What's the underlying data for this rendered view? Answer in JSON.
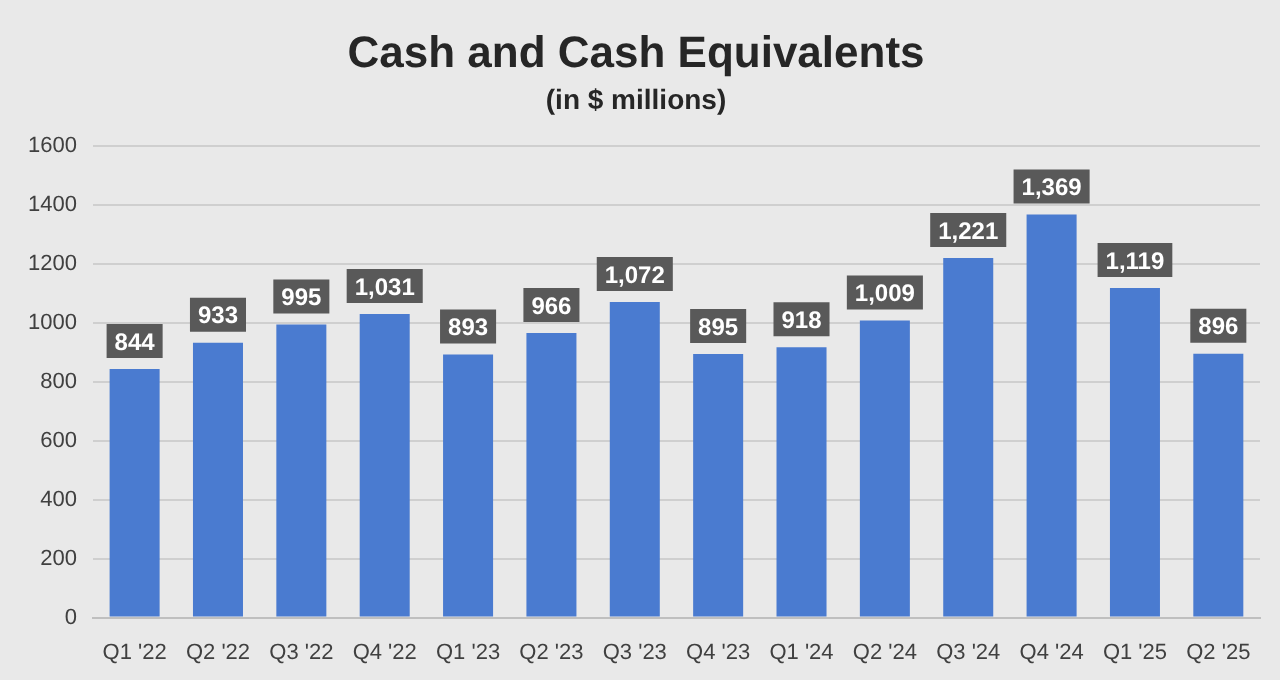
{
  "chart_data": {
    "type": "bar",
    "title": "Cash and Cash Equivalents",
    "subtitle": "(in $ millions)",
    "categories": [
      "Q1 '22",
      "Q2 '22",
      "Q3 '22",
      "Q4 '22",
      "Q1 '23",
      "Q2 '23",
      "Q3 '23",
      "Q4 '23",
      "Q1 '24",
      "Q2 '24",
      "Q3 '24",
      "Q4 '24",
      "Q1 '25",
      "Q2 '25"
    ],
    "values": [
      844,
      933,
      995,
      1031,
      893,
      966,
      1072,
      895,
      918,
      1009,
      1221,
      1369,
      1119,
      896
    ],
    "value_labels": [
      "844",
      "933",
      "995",
      "1,031",
      "893",
      "966",
      "1,072",
      "895",
      "918",
      "1,009",
      "1,221",
      "1,369",
      "1,119",
      "896"
    ],
    "color": "#4a7bd0",
    "ylim": [
      0,
      1600
    ],
    "yticks": [
      0,
      200,
      400,
      600,
      800,
      1000,
      1200,
      1400,
      1600
    ],
    "grid": "y"
  }
}
